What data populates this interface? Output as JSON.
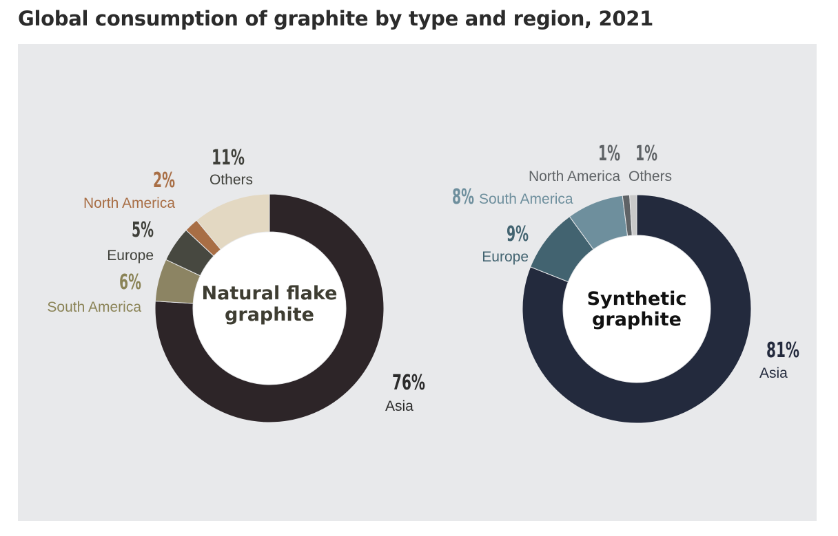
{
  "title": "Global consumption of graphite by type and region, 2021",
  "colors": {
    "panel_bg": "#e8e9eb"
  },
  "chart_data": [
    {
      "type": "pie",
      "donut": true,
      "center_label": [
        "Natural flake",
        "graphite"
      ],
      "center_label_color": "#3e3d32",
      "slices": [
        {
          "label": "Asia",
          "value": 76,
          "pct_text": "76%",
          "color": "#2d2528",
          "text_color": "#2b2b2b"
        },
        {
          "label": "South America",
          "value": 6,
          "pct_text": "6%",
          "color": "#8c8463",
          "text_color": "#8a8356"
        },
        {
          "label": "Europe",
          "value": 5,
          "pct_text": "5%",
          "color": "#474840",
          "text_color": "#3f403a"
        },
        {
          "label": "North America",
          "value": 2,
          "pct_text": "2%",
          "color": "#a86e45",
          "text_color": "#a86e45"
        },
        {
          "label": "Others",
          "value": 11,
          "pct_text": "11%",
          "color": "#e3d8c2",
          "text_color": "#3f403a"
        }
      ]
    },
    {
      "type": "pie",
      "donut": true,
      "center_label": [
        "Synthetic",
        "graphite"
      ],
      "center_label_color": "#111111",
      "slices": [
        {
          "label": "Asia",
          "value": 81,
          "pct_text": "81%",
          "color": "#232a3d",
          "text_color": "#232a3d"
        },
        {
          "label": "Europe",
          "value": 9,
          "pct_text": "9%",
          "color": "#426370",
          "text_color": "#426370"
        },
        {
          "label": "South America",
          "value": 8,
          "pct_text": "8%",
          "color": "#6e8f9d",
          "text_color": "#6e8f9d"
        },
        {
          "label": "North America",
          "value": 1,
          "pct_text": "1%",
          "color": "#5f6366",
          "text_color": "#5f6366"
        },
        {
          "label": "Others",
          "value": 1,
          "pct_text": "1%",
          "color": "#c9c9c9",
          "text_color": "#5f6366"
        }
      ]
    }
  ]
}
